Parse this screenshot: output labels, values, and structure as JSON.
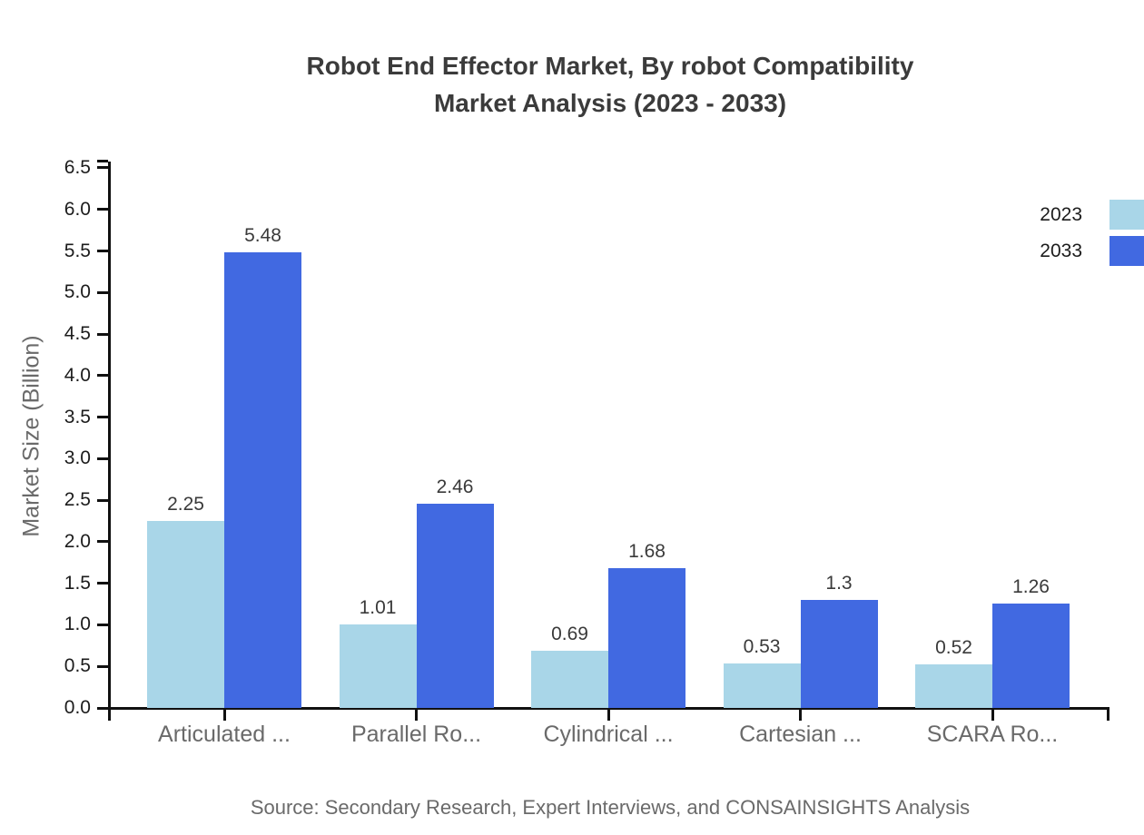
{
  "title": {
    "line1": "Robot End Effector Market, By robot Compatibility",
    "line2": "Market Analysis (2023 - 2033)"
  },
  "y_axis": {
    "label": "Market Size (Billion)",
    "ticks": [
      "0.0",
      "0.5",
      "1.0",
      "1.5",
      "2.0",
      "2.5",
      "3.0",
      "3.5",
      "4.0",
      "4.5",
      "5.0",
      "5.5",
      "6.0",
      "6.5"
    ]
  },
  "legend": {
    "items": [
      {
        "label": "2023",
        "color": "#a9d6e8"
      },
      {
        "label": "2033",
        "color": "#4169e1"
      }
    ]
  },
  "source": "Source: Secondary Research, Expert Interviews, and CONSAINSIGHTS Analysis",
  "colors": {
    "series_2023": "#a9d6e8",
    "series_2033": "#4169e1",
    "axis": "#111111",
    "title_text": "#3b3b3b",
    "muted_text": "#6a6a6a"
  },
  "chart_data": {
    "type": "bar",
    "title": "Robot End Effector Market, By robot Compatibility Market Analysis (2023 - 2033)",
    "xlabel": "",
    "ylabel": "Market Size (Billion)",
    "categories": [
      "Articulated ...",
      "Parallel Ro...",
      "Cylindrical ...",
      "Cartesian ...",
      "SCARA Ro..."
    ],
    "series": [
      {
        "name": "2023",
        "color": "#a9d6e8",
        "values": [
          2.25,
          1.01,
          0.69,
          0.53,
          0.52
        ],
        "labels": [
          "2.25",
          "1.01",
          "0.69",
          "0.53",
          "0.52"
        ]
      },
      {
        "name": "2033",
        "color": "#4169e1",
        "values": [
          5.48,
          2.46,
          1.68,
          1.3,
          1.26
        ],
        "labels": [
          "5.48",
          "2.46",
          "1.68",
          "1.3",
          "1.26"
        ]
      }
    ],
    "ylim": [
      0,
      6.5
    ],
    "ytick_step": 0.5,
    "grid": false,
    "legend_position": "top-right",
    "value_labels_shown": true
  }
}
